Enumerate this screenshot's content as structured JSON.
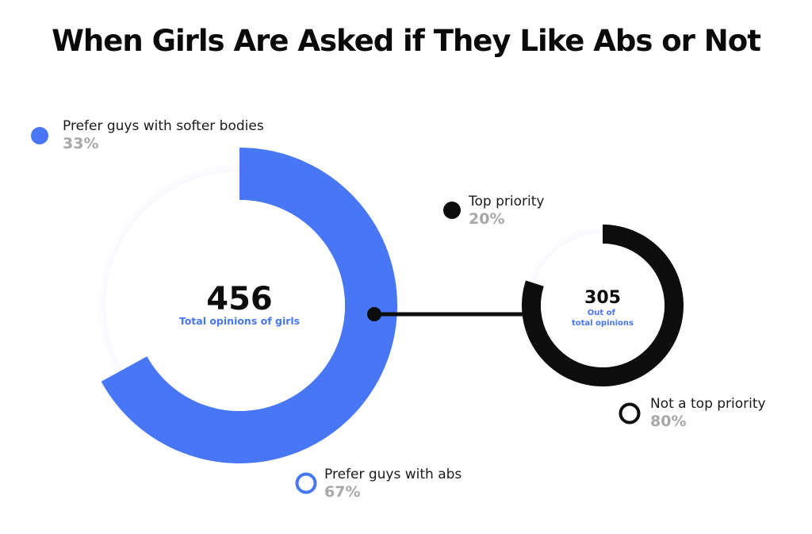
{
  "title": "When Girls Are Asked if They Like Abs or Not",
  "colors": {
    "blue": "#4777f5",
    "black": "#0d0d0d",
    "grey_text": "#a8a8a8",
    "track": "#f4f6fb"
  },
  "chart_data": [
    {
      "type": "pie",
      "style": "donut",
      "center_value": "456",
      "center_label": "Total opinions of girls",
      "slices": [
        {
          "label": "Prefer guys with abs",
          "value": 67,
          "display": "67%",
          "color": "#4777f5"
        },
        {
          "label": "Prefer guys with softer bodies",
          "value": 33,
          "display": "33%",
          "color": "#eef2fc"
        }
      ]
    },
    {
      "type": "pie",
      "style": "donut",
      "center_value": "305",
      "center_label": "Out of total opinions",
      "slices": [
        {
          "label": "Not a top priority",
          "value": 80,
          "display": "80%",
          "color": "#0d0d0d"
        },
        {
          "label": "Top priority",
          "value": 20,
          "display": "20%",
          "color": "#f1f2f5"
        }
      ]
    }
  ]
}
